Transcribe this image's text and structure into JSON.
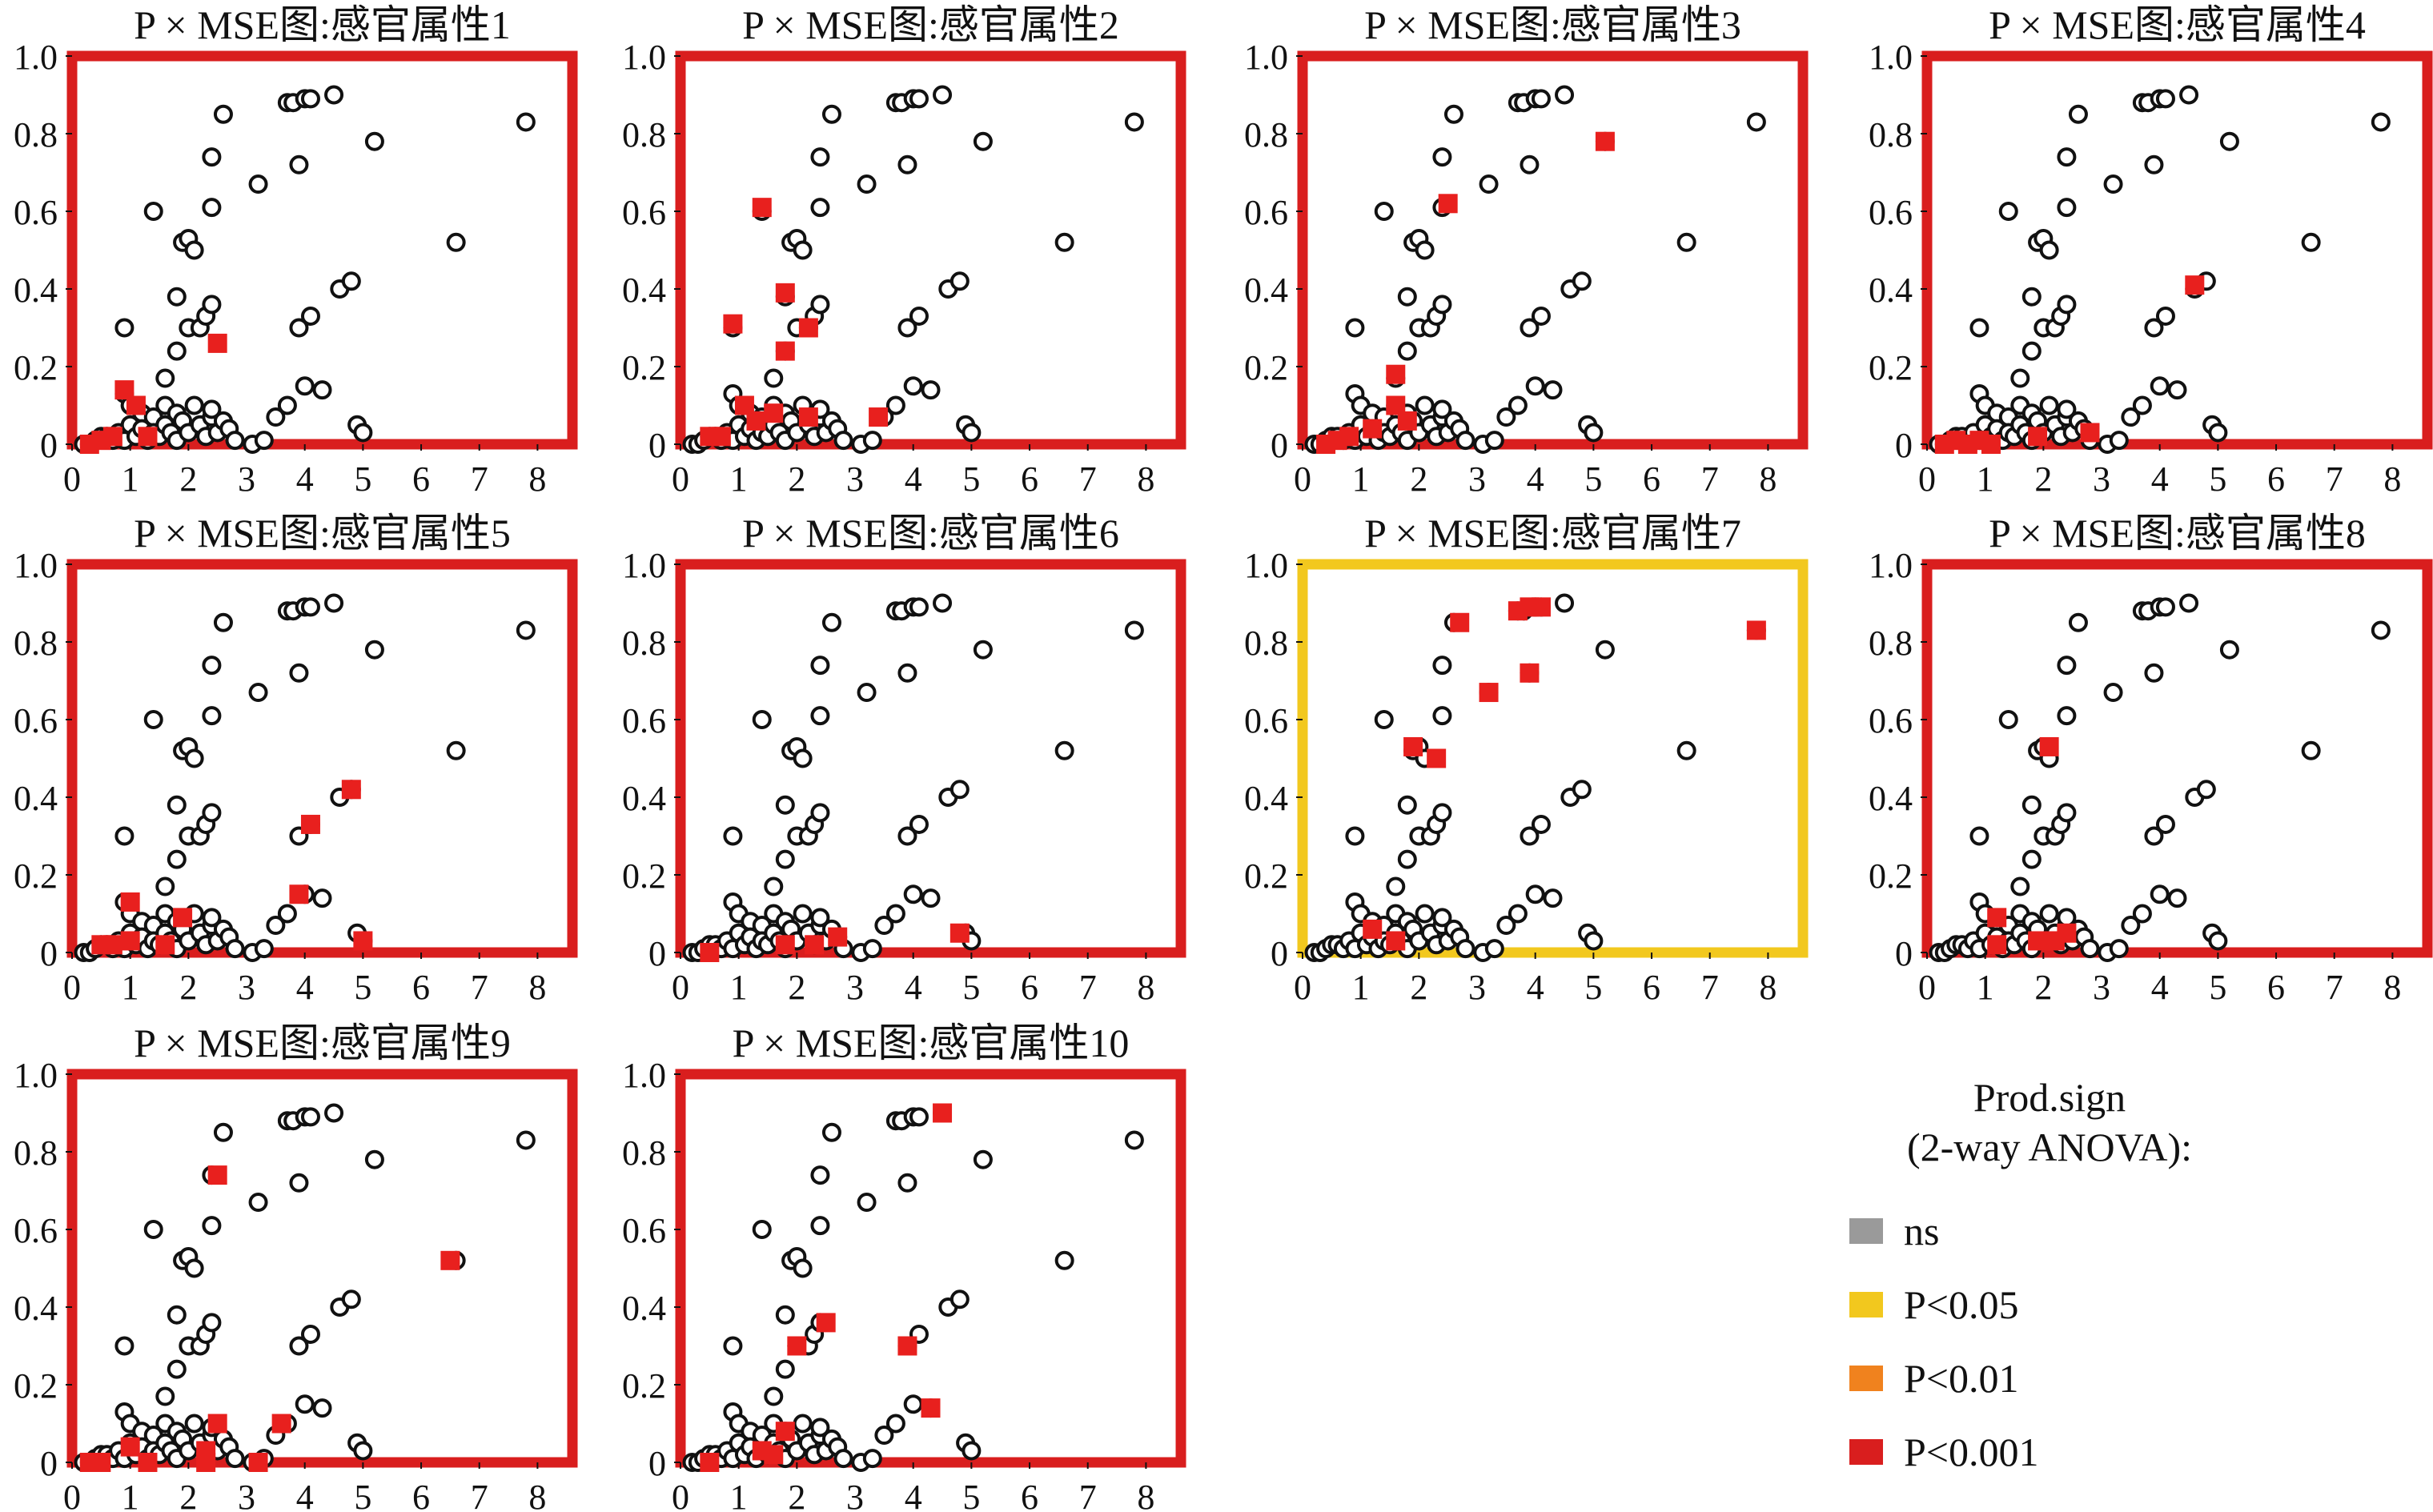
{
  "chart_data": {
    "type": "scatter",
    "base_points": [
      [
        0.2,
        0.0
      ],
      [
        0.3,
        0.0
      ],
      [
        0.4,
        0.01
      ],
      [
        0.5,
        0.02
      ],
      [
        0.6,
        0.02
      ],
      [
        0.7,
        0.01
      ],
      [
        0.8,
        0.03
      ],
      [
        0.9,
        0.01
      ],
      [
        0.9,
        0.13
      ],
      [
        1.0,
        0.1
      ],
      [
        1.0,
        0.05
      ],
      [
        1.1,
        0.02
      ],
      [
        1.2,
        0.08
      ],
      [
        1.2,
        0.04
      ],
      [
        1.3,
        0.01
      ],
      [
        1.4,
        0.07
      ],
      [
        1.4,
        0.03
      ],
      [
        1.5,
        0.02
      ],
      [
        1.6,
        0.05
      ],
      [
        1.6,
        0.1
      ],
      [
        1.7,
        0.03
      ],
      [
        1.8,
        0.08
      ],
      [
        1.8,
        0.01
      ],
      [
        1.9,
        0.06
      ],
      [
        2.0,
        0.03
      ],
      [
        2.1,
        0.1
      ],
      [
        2.2,
        0.05
      ],
      [
        2.3,
        0.02
      ],
      [
        2.4,
        0.07
      ],
      [
        2.5,
        0.03
      ],
      [
        2.6,
        0.06
      ],
      [
        2.7,
        0.04
      ],
      [
        2.8,
        0.01
      ],
      [
        3.1,
        0.0
      ],
      [
        3.3,
        0.01
      ],
      [
        3.5,
        0.07
      ],
      [
        3.7,
        0.1
      ],
      [
        4.0,
        0.15
      ],
      [
        4.3,
        0.14
      ],
      [
        4.9,
        0.05
      ],
      [
        5.0,
        0.03
      ],
      [
        0.9,
        0.3
      ],
      [
        1.4,
        0.6
      ],
      [
        1.6,
        0.17
      ],
      [
        1.8,
        0.24
      ],
      [
        1.8,
        0.38
      ],
      [
        1.9,
        0.52
      ],
      [
        2.0,
        0.3
      ],
      [
        2.0,
        0.53
      ],
      [
        2.1,
        0.5
      ],
      [
        2.2,
        0.3
      ],
      [
        2.3,
        0.33
      ],
      [
        2.4,
        0.74
      ],
      [
        2.4,
        0.61
      ],
      [
        2.4,
        0.36
      ],
      [
        2.4,
        0.09
      ],
      [
        2.6,
        0.85
      ],
      [
        3.2,
        0.67
      ],
      [
        3.7,
        0.88
      ],
      [
        3.8,
        0.88
      ],
      [
        3.9,
        0.72
      ],
      [
        4.0,
        0.89
      ],
      [
        4.1,
        0.89
      ],
      [
        4.5,
        0.9
      ],
      [
        5.2,
        0.78
      ],
      [
        3.9,
        0.3
      ],
      [
        4.1,
        0.33
      ],
      [
        4.6,
        0.4
      ],
      [
        4.8,
        0.42
      ],
      [
        6.6,
        0.52
      ],
      [
        7.8,
        0.83
      ]
    ],
    "panels": [
      {
        "title": "P × MSE图:感官属性1",
        "significance": "P<0.001",
        "highlight": [
          [
            0.3,
            0.0
          ],
          [
            0.5,
            0.01
          ],
          [
            0.7,
            0.02
          ],
          [
            0.9,
            0.14
          ],
          [
            1.1,
            0.1
          ],
          [
            1.3,
            0.02
          ],
          [
            2.5,
            0.26
          ]
        ]
      },
      {
        "title": "P × MSE图:感官属性2",
        "significance": "P<0.001",
        "highlight": [
          [
            0.5,
            0.02
          ],
          [
            0.7,
            0.02
          ],
          [
            0.9,
            0.31
          ],
          [
            1.1,
            0.1
          ],
          [
            1.3,
            0.06
          ],
          [
            1.4,
            0.61
          ],
          [
            1.6,
            0.08
          ],
          [
            1.8,
            0.24
          ],
          [
            1.8,
            0.39
          ],
          [
            2.2,
            0.3
          ],
          [
            2.2,
            0.07
          ],
          [
            3.4,
            0.07
          ]
        ]
      },
      {
        "title": "P × MSE图:感官属性3",
        "significance": "P<0.001",
        "highlight": [
          [
            0.4,
            0.0
          ],
          [
            0.6,
            0.01
          ],
          [
            0.8,
            0.02
          ],
          [
            1.2,
            0.04
          ],
          [
            1.6,
            0.18
          ],
          [
            1.6,
            0.1
          ],
          [
            1.8,
            0.06
          ],
          [
            2.5,
            0.62
          ],
          [
            5.2,
            0.78
          ]
        ]
      },
      {
        "title": "P × MSE图:感官属性4",
        "significance": "P<0.001",
        "highlight": [
          [
            0.3,
            0.0
          ],
          [
            0.5,
            0.01
          ],
          [
            0.7,
            0.0
          ],
          [
            0.9,
            0.01
          ],
          [
            1.1,
            0.0
          ],
          [
            1.9,
            0.02
          ],
          [
            2.8,
            0.03
          ],
          [
            4.6,
            0.41
          ]
        ]
      },
      {
        "title": "P × MSE图:感官属性5",
        "significance": "P<0.001",
        "highlight": [
          [
            0.5,
            0.02
          ],
          [
            0.7,
            0.02
          ],
          [
            1.0,
            0.13
          ],
          [
            1.0,
            0.03
          ],
          [
            1.6,
            0.02
          ],
          [
            1.9,
            0.09
          ],
          [
            3.9,
            0.15
          ],
          [
            4.1,
            0.33
          ],
          [
            4.8,
            0.42
          ],
          [
            5.0,
            0.03
          ]
        ]
      },
      {
        "title": "P × MSE图:感官属性6",
        "significance": "P<0.001",
        "highlight": [
          [
            0.5,
            0.0
          ],
          [
            1.8,
            0.02
          ],
          [
            2.3,
            0.02
          ],
          [
            2.7,
            0.04
          ],
          [
            4.8,
            0.05
          ]
        ]
      },
      {
        "title": "P × MSE图:感官属性7",
        "significance": "P<0.05",
        "highlight": [
          [
            1.2,
            0.06
          ],
          [
            1.6,
            0.03
          ],
          [
            1.9,
            0.53
          ],
          [
            2.3,
            0.5
          ],
          [
            2.7,
            0.85
          ],
          [
            3.2,
            0.67
          ],
          [
            3.7,
            0.88
          ],
          [
            3.9,
            0.89
          ],
          [
            3.9,
            0.72
          ],
          [
            4.1,
            0.89
          ],
          [
            7.8,
            0.83
          ]
        ]
      },
      {
        "title": "P × MSE图:感官属性8",
        "significance": "P<0.001",
        "highlight": [
          [
            1.2,
            0.09
          ],
          [
            1.2,
            0.02
          ],
          [
            1.9,
            0.03
          ],
          [
            2.1,
            0.53
          ],
          [
            2.2,
            0.03
          ],
          [
            2.4,
            0.05
          ]
        ]
      },
      {
        "title": "P × MSE图:感官属性9",
        "significance": "P<0.001",
        "highlight": [
          [
            0.3,
            0.0
          ],
          [
            0.5,
            0.0
          ],
          [
            1.0,
            0.04
          ],
          [
            1.3,
            0.0
          ],
          [
            2.3,
            0.03
          ],
          [
            2.3,
            0.0
          ],
          [
            2.5,
            0.74
          ],
          [
            2.5,
            0.1
          ],
          [
            3.2,
            0.0
          ],
          [
            3.6,
            0.1
          ],
          [
            6.5,
            0.52
          ]
        ]
      },
      {
        "title": "P × MSE图:感官属性10",
        "significance": "P<0.001",
        "highlight": [
          [
            0.5,
            0.0
          ],
          [
            1.4,
            0.03
          ],
          [
            1.6,
            0.02
          ],
          [
            1.8,
            0.08
          ],
          [
            2.0,
            0.3
          ],
          [
            2.5,
            0.36
          ],
          [
            3.9,
            0.3
          ],
          [
            4.3,
            0.14
          ],
          [
            4.5,
            0.9
          ]
        ]
      }
    ],
    "xlim": [
      0,
      8.6
    ],
    "ylim": [
      0,
      1.0
    ],
    "xticks": [
      0,
      1,
      2,
      3,
      4,
      5,
      6,
      7,
      8
    ],
    "yticks": [
      0,
      0.2,
      0.4,
      0.6,
      0.8,
      1.0
    ],
    "ytick_labels": [
      "0",
      "0.2",
      "0.4",
      "0.6",
      "0.8",
      "1.0"
    ],
    "legend_position": "bottom-right"
  },
  "legend": {
    "title_line1": "Prod.sign",
    "title_line2": "(2-way ANOVA):",
    "items": [
      {
        "label": "ns",
        "color": "#9a9a9a"
      },
      {
        "label": "P<0.05",
        "color": "#f2c81e"
      },
      {
        "label": "P<0.01",
        "color": "#f0821e"
      },
      {
        "label": "P<0.001",
        "color": "#d91e1e"
      }
    ]
  },
  "colors": {
    "P<0.001": "#d91e1e",
    "P<0.05": "#f2c81e",
    "marker_fill": "#e8201e"
  }
}
